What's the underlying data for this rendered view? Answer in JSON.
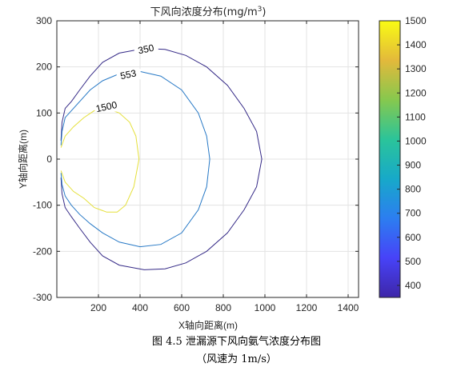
{
  "chart_data": {
    "type": "contour",
    "title": "下风向浓度分布(mg/m",
    "title_sup": "3",
    "title_close": ")",
    "xlabel": "X轴向距离(m)",
    "ylabel": "Y轴向距离(m)",
    "xlim": [
      0,
      1450
    ],
    "ylim": [
      -300,
      300
    ],
    "xticks": [
      200,
      400,
      600,
      800,
      1000,
      1200,
      1400
    ],
    "yticks": [
      300,
      200,
      100,
      0,
      -100,
      -200,
      -300
    ],
    "grid": true,
    "colorbar": {
      "range": [
        350,
        1500
      ],
      "ticks": [
        1500,
        1400,
        1300,
        1200,
        1100,
        1000,
        900,
        800,
        700,
        600,
        500,
        400
      ],
      "colormap": "parula",
      "stops": [
        "#3e26a8",
        "#4743f8",
        "#2c7ef0",
        "#17a9c9",
        "#2bc49a",
        "#86c84e",
        "#e3b93b",
        "#f9fb14"
      ]
    },
    "contours": [
      {
        "level": 350,
        "label": "350",
        "color": "#352a87",
        "label_at": [
          430,
          235
        ],
        "points": [
          [
            20,
            40
          ],
          [
            25,
            80
          ],
          [
            40,
            110
          ],
          [
            70,
            125
          ],
          [
            110,
            150
          ],
          [
            160,
            180
          ],
          [
            220,
            210
          ],
          [
            300,
            230
          ],
          [
            420,
            240
          ],
          [
            520,
            238
          ],
          [
            620,
            225
          ],
          [
            720,
            200
          ],
          [
            820,
            160
          ],
          [
            900,
            110
          ],
          [
            960,
            60
          ],
          [
            985,
            0
          ],
          [
            960,
            -60
          ],
          [
            900,
            -110
          ],
          [
            820,
            -160
          ],
          [
            720,
            -200
          ],
          [
            620,
            -225
          ],
          [
            520,
            -238
          ],
          [
            420,
            -240
          ],
          [
            300,
            -230
          ],
          [
            220,
            -210
          ],
          [
            160,
            -180
          ],
          [
            110,
            -150
          ],
          [
            70,
            -125
          ],
          [
            40,
            -105
          ],
          [
            25,
            -75
          ],
          [
            20,
            -40
          ]
        ]
      },
      {
        "level": 553,
        "label": "553",
        "color": "#2779c6",
        "label_at": [
          345,
          180
        ],
        "points": [
          [
            20,
            30
          ],
          [
            25,
            60
          ],
          [
            40,
            90
          ],
          [
            70,
            105
          ],
          [
            110,
            125
          ],
          [
            160,
            150
          ],
          [
            220,
            170
          ],
          [
            300,
            185
          ],
          [
            400,
            190
          ],
          [
            500,
            180
          ],
          [
            600,
            150
          ],
          [
            680,
            100
          ],
          [
            720,
            50
          ],
          [
            735,
            0
          ],
          [
            720,
            -60
          ],
          [
            680,
            -110
          ],
          [
            600,
            -160
          ],
          [
            500,
            -185
          ],
          [
            400,
            -190
          ],
          [
            300,
            -180
          ],
          [
            220,
            -160
          ],
          [
            160,
            -140
          ],
          [
            110,
            -120
          ],
          [
            70,
            -100
          ],
          [
            40,
            -80
          ],
          [
            25,
            -55
          ],
          [
            20,
            -30
          ]
        ]
      },
      {
        "level": 1500,
        "label": "1500",
        "color": "#e5e03b",
        "label_at": [
          240,
          110
        ],
        "points": [
          [
            20,
            25
          ],
          [
            40,
            50
          ],
          [
            80,
            70
          ],
          [
            130,
            90
          ],
          [
            180,
            105
          ],
          [
            240,
            110
          ],
          [
            300,
            100
          ],
          [
            350,
            80
          ],
          [
            380,
            50
          ],
          [
            395,
            0
          ],
          [
            370,
            -60
          ],
          [
            330,
            -100
          ],
          [
            290,
            -115
          ],
          [
            240,
            -115
          ],
          [
            180,
            -105
          ],
          [
            130,
            -85
          ],
          [
            80,
            -70
          ],
          [
            40,
            -50
          ],
          [
            20,
            -25
          ]
        ]
      }
    ]
  },
  "caption": {
    "line1": "图 4.5  泄漏源下风向氨气浓度分布图",
    "line2": "（风速为 1m/s）"
  }
}
